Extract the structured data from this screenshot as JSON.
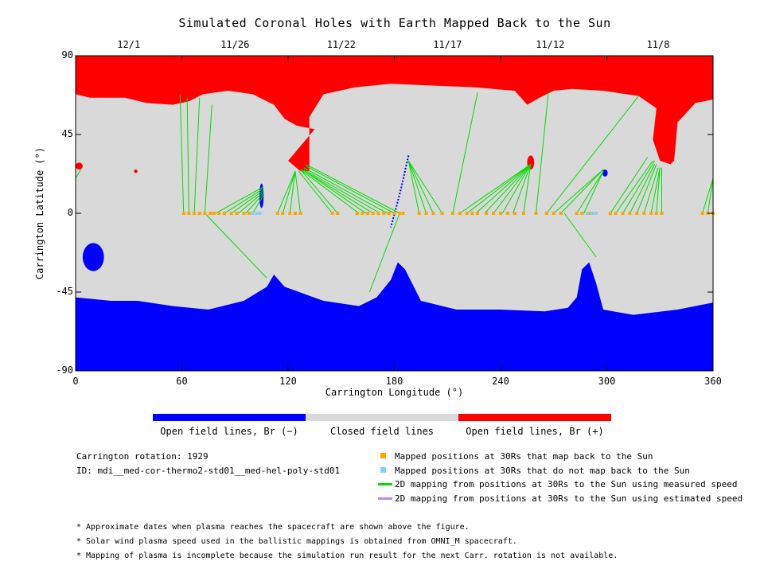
{
  "chart_data": {
    "type": "map",
    "title": "Simulated Coronal Holes with Earth Mapped Back to the Sun",
    "xlabel": "Carrington Longitude (°)",
    "ylabel": "Carrington Latitude (°)",
    "xlim": [
      0,
      360
    ],
    "ylim": [
      -90,
      90
    ],
    "xticks": [
      0,
      60,
      120,
      180,
      240,
      300,
      360
    ],
    "yticks": [
      -90,
      -45,
      0,
      45,
      90
    ],
    "top_axis": {
      "labels": [
        "12/1",
        "11/26",
        "11/22",
        "11/17",
        "11/12",
        "11/8"
      ],
      "longitudes": [
        30,
        90,
        150,
        210,
        268,
        329
      ]
    },
    "colorbar": {
      "segments": [
        {
          "label": "Open field lines, Br (−)",
          "color": "#0000ff"
        },
        {
          "label": "Closed field lines",
          "color": "#d9d9d9"
        },
        {
          "label": "Open field lines, Br (+)",
          "color": "#ff0000"
        }
      ]
    },
    "colors": {
      "negative": "#0000ff",
      "closed": "#d9d9d9",
      "positive": "#ff0000",
      "mapped": "#ffa500",
      "unmapped": "#87cefa",
      "measured": "#00dd00",
      "estimated": "#b98cf0"
    },
    "red_boundary": [
      [
        0,
        68
      ],
      [
        8,
        66
      ],
      [
        28,
        66
      ],
      [
        40,
        63
      ],
      [
        55,
        62
      ],
      [
        64,
        64
      ],
      [
        72,
        68
      ],
      [
        86,
        70
      ],
      [
        100,
        68
      ],
      [
        112,
        62
      ],
      [
        118,
        54
      ],
      [
        125,
        50
      ],
      [
        135,
        48
      ],
      [
        120,
        30
      ],
      [
        127,
        24
      ],
      [
        132,
        24
      ],
      [
        132,
        55
      ],
      [
        140,
        68
      ],
      [
        158,
        72
      ],
      [
        178,
        74
      ],
      [
        200,
        73
      ],
      [
        225,
        72
      ],
      [
        248,
        70
      ],
      [
        255,
        62
      ],
      [
        262,
        66
      ],
      [
        270,
        70
      ],
      [
        280,
        71
      ],
      [
        298,
        70
      ],
      [
        318,
        67
      ],
      [
        328,
        60
      ],
      [
        326,
        42
      ],
      [
        330,
        30
      ],
      [
        336,
        28
      ],
      [
        338,
        30
      ],
      [
        340,
        52
      ],
      [
        350,
        63
      ],
      [
        360,
        65
      ]
    ],
    "blue_boundary": [
      [
        0,
        -48
      ],
      [
        20,
        -50
      ],
      [
        35,
        -50
      ],
      [
        55,
        -53
      ],
      [
        75,
        -55
      ],
      [
        95,
        -50
      ],
      [
        108,
        -42
      ],
      [
        112,
        -35
      ],
      [
        118,
        -42
      ],
      [
        140,
        -50
      ],
      [
        160,
        -53
      ],
      [
        170,
        -48
      ],
      [
        178,
        -38
      ],
      [
        182,
        -28
      ],
      [
        186,
        -32
      ],
      [
        195,
        -50
      ],
      [
        215,
        -55
      ],
      [
        240,
        -55
      ],
      [
        265,
        -56
      ],
      [
        278,
        -54
      ],
      [
        283,
        -48
      ],
      [
        286,
        -32
      ],
      [
        290,
        -28
      ],
      [
        294,
        -40
      ],
      [
        298,
        -55
      ],
      [
        315,
        -58
      ],
      [
        340,
        -55
      ],
      [
        360,
        -51
      ]
    ],
    "red_patches": [
      {
        "lon": 2,
        "lat": 27,
        "rx": 2,
        "ry": 2
      },
      {
        "lon": 34,
        "lat": 24,
        "rx": 1,
        "ry": 1
      },
      {
        "lon": 257,
        "lat": 29,
        "rx": 2,
        "ry": 4
      }
    ],
    "blue_patches": [
      {
        "lon": 10,
        "lat": -25,
        "rx": 6,
        "ry": 8
      },
      {
        "lon": 105,
        "lat": 10,
        "rx": 1.2,
        "ry": 7
      },
      {
        "lon": 299,
        "lat": 23,
        "rx": 1.5,
        "ry": 2
      }
    ],
    "blue_streak": [
      [
        188,
        33
      ],
      [
        184,
        15
      ],
      [
        181,
        3
      ],
      [
        178,
        -8
      ]
    ],
    "mapped_positions": [
      [
        61,
        0
      ],
      [
        64,
        0
      ],
      [
        67,
        0
      ],
      [
        70,
        0
      ],
      [
        73,
        0
      ],
      [
        76,
        0
      ],
      [
        78,
        0
      ],
      [
        81,
        0
      ],
      [
        84,
        0
      ],
      [
        88,
        0
      ],
      [
        91,
        0
      ],
      [
        95,
        0
      ],
      [
        98,
        0
      ],
      [
        114,
        0
      ],
      [
        117,
        0
      ],
      [
        121,
        0
      ],
      [
        124,
        0
      ],
      [
        127,
        0
      ],
      [
        145,
        0
      ],
      [
        148,
        0
      ],
      [
        159,
        0
      ],
      [
        162,
        0
      ],
      [
        165,
        0
      ],
      [
        168,
        0
      ],
      [
        171,
        0
      ],
      [
        174,
        0
      ],
      [
        177,
        0
      ],
      [
        180,
        0
      ],
      [
        183,
        0
      ],
      [
        185,
        0
      ],
      [
        194,
        0
      ],
      [
        198,
        0
      ],
      [
        202,
        0
      ],
      [
        207,
        0
      ],
      [
        213,
        0
      ],
      [
        217,
        0
      ],
      [
        221,
        0
      ],
      [
        224,
        0
      ],
      [
        227,
        0
      ],
      [
        232,
        0
      ],
      [
        236,
        0
      ],
      [
        240,
        0
      ],
      [
        244,
        0
      ],
      [
        248,
        0
      ],
      [
        253,
        0
      ],
      [
        260,
        0
      ],
      [
        266,
        0
      ],
      [
        270,
        0
      ],
      [
        274,
        0
      ],
      [
        283,
        0
      ],
      [
        286,
        0
      ],
      [
        290,
        0
      ],
      [
        302,
        0
      ],
      [
        305,
        0
      ],
      [
        309,
        0
      ],
      [
        313,
        0
      ],
      [
        317,
        0
      ],
      [
        321,
        0
      ],
      [
        325,
        0
      ],
      [
        328,
        0
      ],
      [
        331,
        0
      ],
      [
        354,
        0
      ],
      [
        357,
        0
      ],
      [
        360,
        0
      ]
    ],
    "unmapped_positions": [
      [
        100,
        0
      ],
      [
        102,
        0
      ],
      [
        104,
        0
      ],
      [
        289,
        0
      ],
      [
        292,
        0
      ],
      [
        294,
        0
      ]
    ],
    "measured_lines": [
      [
        [
          61,
          0
        ],
        [
          59,
          68
        ]
      ],
      [
        [
          64,
          0
        ],
        [
          63,
          66
        ]
      ],
      [
        [
          67,
          0
        ],
        [
          70,
          66
        ]
      ],
      [
        [
          73,
          0
        ],
        [
          77,
          62
        ]
      ],
      [
        [
          79,
          0
        ],
        [
          106,
          15
        ]
      ],
      [
        [
          84,
          0
        ],
        [
          106,
          14
        ]
      ],
      [
        [
          88,
          0
        ],
        [
          106,
          13
        ]
      ],
      [
        [
          92,
          0
        ],
        [
          106,
          12
        ]
      ],
      [
        [
          96,
          0
        ],
        [
          106,
          11
        ]
      ],
      [
        [
          100,
          0
        ],
        [
          106,
          10
        ]
      ],
      [
        [
          73,
          0
        ],
        [
          108,
          -37
        ]
      ],
      [
        [
          114,
          0
        ],
        [
          124,
          24
        ]
      ],
      [
        [
          117,
          0
        ],
        [
          124,
          24
        ]
      ],
      [
        [
          121,
          0
        ],
        [
          124,
          24
        ]
      ],
      [
        [
          127,
          0
        ],
        [
          124,
          24
        ]
      ],
      [
        [
          145,
          0
        ],
        [
          126,
          24
        ]
      ],
      [
        [
          148,
          0
        ],
        [
          127,
          25
        ]
      ],
      [
        [
          160,
          0
        ],
        [
          127,
          25
        ]
      ],
      [
        [
          164,
          0
        ],
        [
          128,
          25
        ]
      ],
      [
        [
          168,
          0
        ],
        [
          128,
          25
        ]
      ],
      [
        [
          172,
          0
        ],
        [
          129,
          25
        ]
      ],
      [
        [
          176,
          0
        ],
        [
          129,
          26
        ]
      ],
      [
        [
          180,
          0
        ],
        [
          130,
          27
        ]
      ],
      [
        [
          183,
          0
        ],
        [
          130,
          28
        ]
      ],
      [
        [
          183,
          0
        ],
        [
          166,
          -45
        ]
      ],
      [
        [
          194,
          0
        ],
        [
          188,
          30
        ]
      ],
      [
        [
          198,
          0
        ],
        [
          188,
          30
        ]
      ],
      [
        [
          202,
          0
        ],
        [
          188,
          30
        ]
      ],
      [
        [
          207,
          0
        ],
        [
          188,
          30
        ]
      ],
      [
        [
          213,
          0
        ],
        [
          227,
          69
        ]
      ],
      [
        [
          217,
          0
        ],
        [
          257,
          28
        ]
      ],
      [
        [
          221,
          0
        ],
        [
          257,
          28
        ]
      ],
      [
        [
          226,
          0
        ],
        [
          257,
          28
        ]
      ],
      [
        [
          231,
          0
        ],
        [
          257,
          28
        ]
      ],
      [
        [
          236,
          0
        ],
        [
          257,
          28
        ]
      ],
      [
        [
          241,
          0
        ],
        [
          257,
          28
        ]
      ],
      [
        [
          247,
          0
        ],
        [
          257,
          28
        ]
      ],
      [
        [
          253,
          0
        ],
        [
          257,
          28
        ]
      ],
      [
        [
          260,
          0
        ],
        [
          267,
          69
        ]
      ],
      [
        [
          266,
          0
        ],
        [
          318,
          67
        ]
      ],
      [
        [
          270,
          0
        ],
        [
          298,
          25
        ]
      ],
      [
        [
          274,
          0
        ],
        [
          298,
          25
        ]
      ],
      [
        [
          276,
          0
        ],
        [
          294,
          -25
        ]
      ],
      [
        [
          283,
          0
        ],
        [
          298,
          24
        ]
      ],
      [
        [
          287,
          0
        ],
        [
          298,
          24
        ]
      ],
      [
        [
          302,
          0
        ],
        [
          323,
          32
        ]
      ],
      [
        [
          305,
          0
        ],
        [
          326,
          30
        ]
      ],
      [
        [
          309,
          0
        ],
        [
          327,
          30
        ]
      ],
      [
        [
          313,
          0
        ],
        [
          327,
          28
        ]
      ],
      [
        [
          317,
          0
        ],
        [
          328,
          28
        ]
      ],
      [
        [
          321,
          0
        ],
        [
          329,
          26
        ]
      ],
      [
        [
          325,
          0
        ],
        [
          330,
          26
        ]
      ],
      [
        [
          328,
          0
        ],
        [
          330,
          26
        ]
      ],
      [
        [
          331,
          0
        ],
        [
          331,
          26
        ]
      ],
      [
        [
          354,
          0
        ],
        [
          360,
          20
        ]
      ],
      [
        [
          357,
          0
        ],
        [
          360,
          20
        ]
      ],
      [
        [
          0,
          20
        ],
        [
          3,
          25
        ]
      ]
    ]
  },
  "legend": {
    "info": {
      "rotation": "Carrington rotation: 1929",
      "id": "ID: mdi__med-cor-thermo2-std01__med-hel-poly-std01"
    },
    "items": [
      {
        "label": "Mapped positions at 30Rs that map back to the Sun",
        "kind": "square",
        "color": "#ffa500"
      },
      {
        "label": "Mapped positions at 30Rs that do not map back to the Sun",
        "kind": "square",
        "color": "#87cefa"
      },
      {
        "label": "2D mapping from positions at 30Rs to the Sun using measured speed",
        "kind": "line",
        "color": "#00dd00"
      },
      {
        "label": "2D mapping from positions at 30Rs to the Sun using estimated speed",
        "kind": "line",
        "color": "#b98cf0"
      }
    ]
  },
  "notes": [
    "* Approximate dates when plasma reaches the spacecraft are shown above the figure.",
    "* Solar wind plasma speed used in the ballistic mappings is obtained from OMNI_M spacecraft.",
    "* Mapping of plasma is incomplete because the simulation run result for the next Carr. rotation is not available."
  ]
}
